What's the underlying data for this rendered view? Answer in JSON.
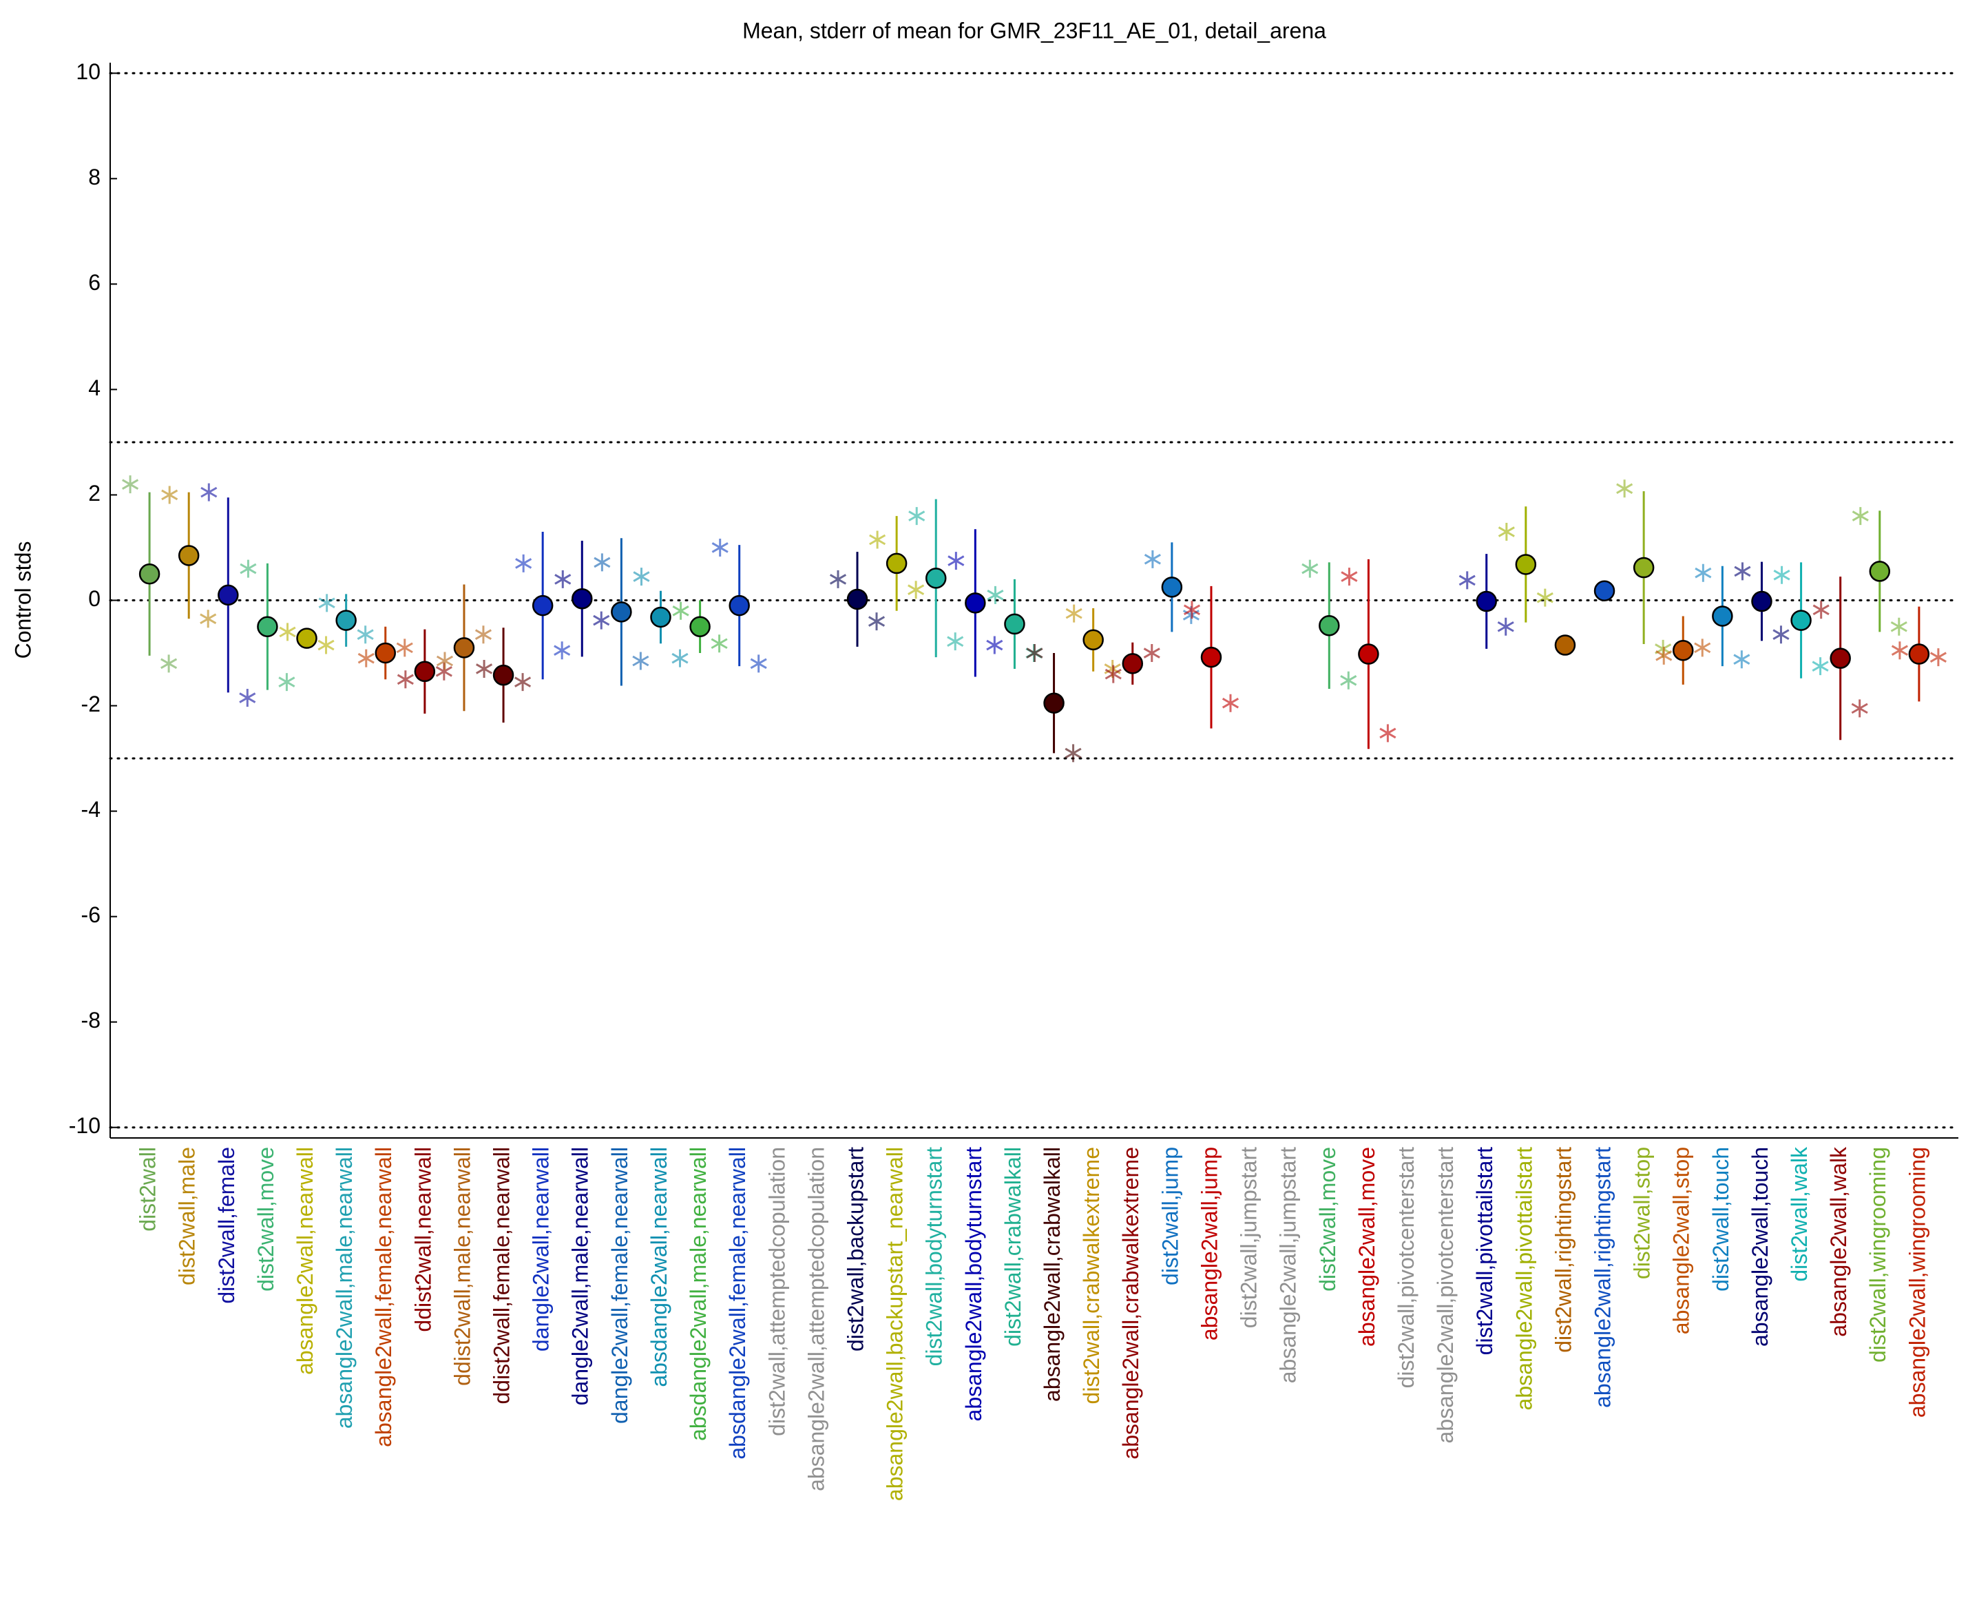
{
  "chart_data": {
    "type": "errorbar",
    "title": "Mean, stderr of mean for GMR_23F11_AE_01, detail_arena",
    "y_label": "Control stds",
    "categories": [
      "dist2wall",
      "dist2wall,male",
      "dist2wall,female",
      "dist2wall,move",
      "absangle2wall,nearwall",
      "absangle2wall,male,nearwall",
      "absangle2wall,female,nearwall",
      "ddist2wall,nearwall",
      "ddist2wall,male,nearwall",
      "ddist2wall,female,nearwall",
      "dangle2wall,nearwall",
      "dangle2wall,male,nearwall",
      "dangle2wall,female,nearwall",
      "absdangle2wall,nearwall",
      "absdangle2wall,male,nearwall",
      "absdangle2wall,female,nearwall",
      "dist2wall,attemptedcopulation",
      "absangle2wall,attemptedcopulation",
      "dist2wall,backupstart",
      "absangle2wall,backupstart_nearwall",
      "dist2wall,bodyturnstart",
      "absangle2wall,bodyturnstart",
      "dist2wall,crabwalkall",
      "absangle2wall,crabwalkall",
      "dist2wall,crabwalkextreme",
      "absangle2wall,crabwalkextreme",
      "dist2wall,jump",
      "absangle2wall,jump",
      "dist2wall,jumpstart",
      "absangle2wall,jumpstart",
      "dist2wall,move",
      "absangle2wall,move",
      "dist2wall,pivotcenterstart",
      "absangle2wall,pivotcenterstart",
      "dist2wall,pivottailstart",
      "absangle2wall,pivottailstart",
      "dist2wall,rightingstart",
      "absangle2wall,rightingstart",
      "dist2wall,stop",
      "absangle2wall,stop",
      "dist2wall,touch",
      "absangle2wall,touch",
      "dist2wall,walk",
      "absangle2wall,walk",
      "dist2wall,wingrooming",
      "absangle2wall,wingrooming"
    ],
    "colors": [
      "#6aa84f",
      "#b8860b",
      "#1010a0",
      "#3cb371",
      "#b8b000",
      "#20a0b0",
      "#c04000",
      "#8b0000",
      "#b06010",
      "#600000",
      "#1030c0",
      "#000080",
      "#1060b0",
      "#1090b0",
      "#40b040",
      "#1040c0",
      "#909090",
      "#909090",
      "#000050",
      "#b0b000",
      "#20b0a0",
      "#0000b0",
      "#20b090",
      "#400000",
      "#c09000",
      "#900000",
      "#1070c0",
      "#c00000",
      "#909090",
      "#909090",
      "#40b060",
      "#c00000",
      "#909090",
      "#909090",
      "#000090",
      "#a0b000",
      "#b06000",
      "#1050c0",
      "#90b020",
      "#c05000",
      "#1080c0",
      "#000070",
      "#10b0b0",
      "#900000",
      "#70b030",
      "#c02000"
    ],
    "values": [
      0.5,
      0.85,
      0.1,
      -0.5,
      -0.72,
      -0.38,
      -1.0,
      -1.35,
      -0.9,
      -1.42,
      -0.1,
      0.03,
      -0.22,
      -0.32,
      -0.5,
      -0.1,
      null,
      null,
      0.02,
      0.7,
      0.42,
      -0.05,
      -0.45,
      -1.95,
      -0.75,
      -1.2,
      0.25,
      -1.08,
      null,
      null,
      -0.48,
      -1.02,
      null,
      null,
      -0.02,
      0.68,
      -0.85,
      0.18,
      0.62,
      -0.95,
      -0.3,
      -0.02,
      -0.38,
      -1.1,
      0.55,
      -1.02
    ],
    "errors": [
      1.55,
      1.2,
      1.85,
      1.2,
      0.1,
      0.5,
      0.5,
      0.8,
      1.2,
      0.9,
      1.4,
      1.1,
      1.4,
      0.5,
      0.5,
      1.15,
      null,
      null,
      0.9,
      0.9,
      1.5,
      1.4,
      0.85,
      0.95,
      0.6,
      0.4,
      0.85,
      1.35,
      null,
      null,
      1.2,
      1.8,
      null,
      null,
      0.9,
      1.1,
      0,
      0.1,
      1.45,
      0.65,
      0.95,
      0.75,
      1.1,
      1.55,
      1.15,
      0.9
    ],
    "left_values": [
      2.2,
      2.0,
      2.05,
      0.6,
      -0.6,
      -0.05,
      -1.1,
      -1.5,
      -1.15,
      -1.3,
      0.7,
      0.4,
      0.72,
      0.45,
      -0.2,
      1.0,
      null,
      null,
      0.4,
      1.15,
      1.6,
      0.75,
      0.1,
      -1.0,
      -0.25,
      -1.4,
      0.78,
      -0.18,
      null,
      null,
      0.6,
      0.45,
      null,
      null,
      0.38,
      1.3,
      null,
      null,
      2.12,
      -1.05,
      0.52,
      0.55,
      0.48,
      -0.18,
      1.6,
      -0.95
    ],
    "right_values": [
      -1.2,
      -0.35,
      -1.85,
      -1.55,
      -0.85,
      -0.65,
      -0.9,
      -1.35,
      -0.65,
      -1.55,
      -0.95,
      -0.38,
      -1.15,
      -1.1,
      -0.82,
      -1.2,
      null,
      null,
      -0.4,
      0.2,
      -0.78,
      -0.85,
      -1.0,
      -2.9,
      -1.3,
      -1.0,
      -0.28,
      -1.95,
      null,
      null,
      -1.52,
      -2.52,
      null,
      null,
      -0.5,
      0.05,
      null,
      null,
      -0.92,
      -0.9,
      -1.12,
      -0.65,
      -1.25,
      -2.05,
      -0.5,
      -1.08
    ],
    "ylim": [
      -10.2,
      10.2
    ],
    "yticks": [
      -10,
      -8,
      -6,
      -4,
      -2,
      0,
      2,
      4,
      6,
      8,
      10
    ],
    "reference_lines": [
      10,
      3,
      0,
      -3,
      -10
    ]
  }
}
